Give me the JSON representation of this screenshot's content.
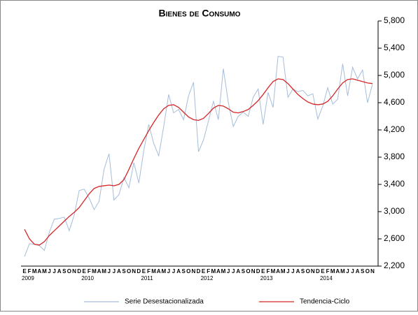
{
  "chart_data": {
    "type": "line",
    "title": "Bienes de Consumo",
    "categories": [
      "E",
      "F",
      "M",
      "A",
      "M",
      "J",
      "J",
      "A",
      "S",
      "O",
      "N",
      "D",
      "E",
      "F",
      "M",
      "A",
      "M",
      "J",
      "J",
      "A",
      "S",
      "O",
      "N",
      "D",
      "E",
      "F",
      "M",
      "A",
      "M",
      "J",
      "J",
      "A",
      "S",
      "O",
      "N",
      "D",
      "E",
      "F",
      "M",
      "A",
      "M",
      "J",
      "J",
      "A",
      "S",
      "O",
      "N",
      "D",
      "E",
      "F",
      "M",
      "A",
      "M",
      "J",
      "J",
      "A",
      "S",
      "O",
      "N",
      "D",
      "E",
      "F",
      "M",
      "A",
      "M",
      "J",
      "J",
      "A",
      "S",
      "O",
      "N"
    ],
    "groups": [
      {
        "label": "2009",
        "count": 12
      },
      {
        "label": "2010",
        "count": 12
      },
      {
        "label": "2011",
        "count": 12
      },
      {
        "label": "2012",
        "count": 12
      },
      {
        "label": "2013",
        "count": 12
      },
      {
        "label": "2014",
        "count": 11
      }
    ],
    "series": [
      {
        "name": "Serie Desestacionalizada",
        "color": "#a6bddb",
        "values": [
          2340,
          2530,
          2520,
          2500,
          2430,
          2700,
          2890,
          2900,
          2920,
          2720,
          2950,
          3310,
          3330,
          3200,
          3030,
          3150,
          3620,
          3850,
          3170,
          3250,
          3500,
          3350,
          3720,
          3420,
          3900,
          4280,
          4000,
          3820,
          4250,
          4720,
          4450,
          4500,
          4350,
          4700,
          4900,
          3880,
          4050,
          4330,
          4620,
          4350,
          5100,
          4600,
          4250,
          4400,
          4460,
          4400,
          4680,
          4800,
          4280,
          4750,
          4530,
          5280,
          5270,
          4680,
          4800,
          4760,
          4780,
          4700,
          4730,
          4360,
          4550,
          4820,
          4580,
          4650,
          5170,
          4700,
          5120,
          4950,
          5080,
          4600,
          4870
        ]
      },
      {
        "name": "Tendencia-Ciclo",
        "color": "#d62728",
        "values": [
          2740,
          2600,
          2520,
          2510,
          2560,
          2650,
          2720,
          2790,
          2860,
          2930,
          2990,
          3060,
          3160,
          3260,
          3340,
          3370,
          3380,
          3390,
          3380,
          3400,
          3470,
          3620,
          3780,
          3930,
          4060,
          4190,
          4310,
          4420,
          4510,
          4560,
          4570,
          4530,
          4460,
          4390,
          4350,
          4340,
          4370,
          4440,
          4520,
          4560,
          4550,
          4510,
          4460,
          4450,
          4470,
          4500,
          4560,
          4630,
          4720,
          4820,
          4910,
          4950,
          4940,
          4880,
          4800,
          4720,
          4660,
          4610,
          4580,
          4570,
          4580,
          4620,
          4700,
          4800,
          4890,
          4940,
          4950,
          4930,
          4910,
          4890,
          4880
        ]
      }
    ],
    "ylim": [
      2200,
      5800
    ],
    "yticks": [
      {
        "value": 2200,
        "label": "2,200"
      },
      {
        "value": 2600,
        "label": "2,600"
      },
      {
        "value": 3000,
        "label": "3,000"
      },
      {
        "value": 3400,
        "label": "3,400"
      },
      {
        "value": 3800,
        "label": "3,800"
      },
      {
        "value": 4200,
        "label": "4,200"
      },
      {
        "value": 4600,
        "label": "4,600"
      },
      {
        "value": 5000,
        "label": "5,000"
      },
      {
        "value": 5400,
        "label": "5,400"
      },
      {
        "value": 5800,
        "label": "5,800"
      }
    ],
    "legend": "bottom"
  }
}
